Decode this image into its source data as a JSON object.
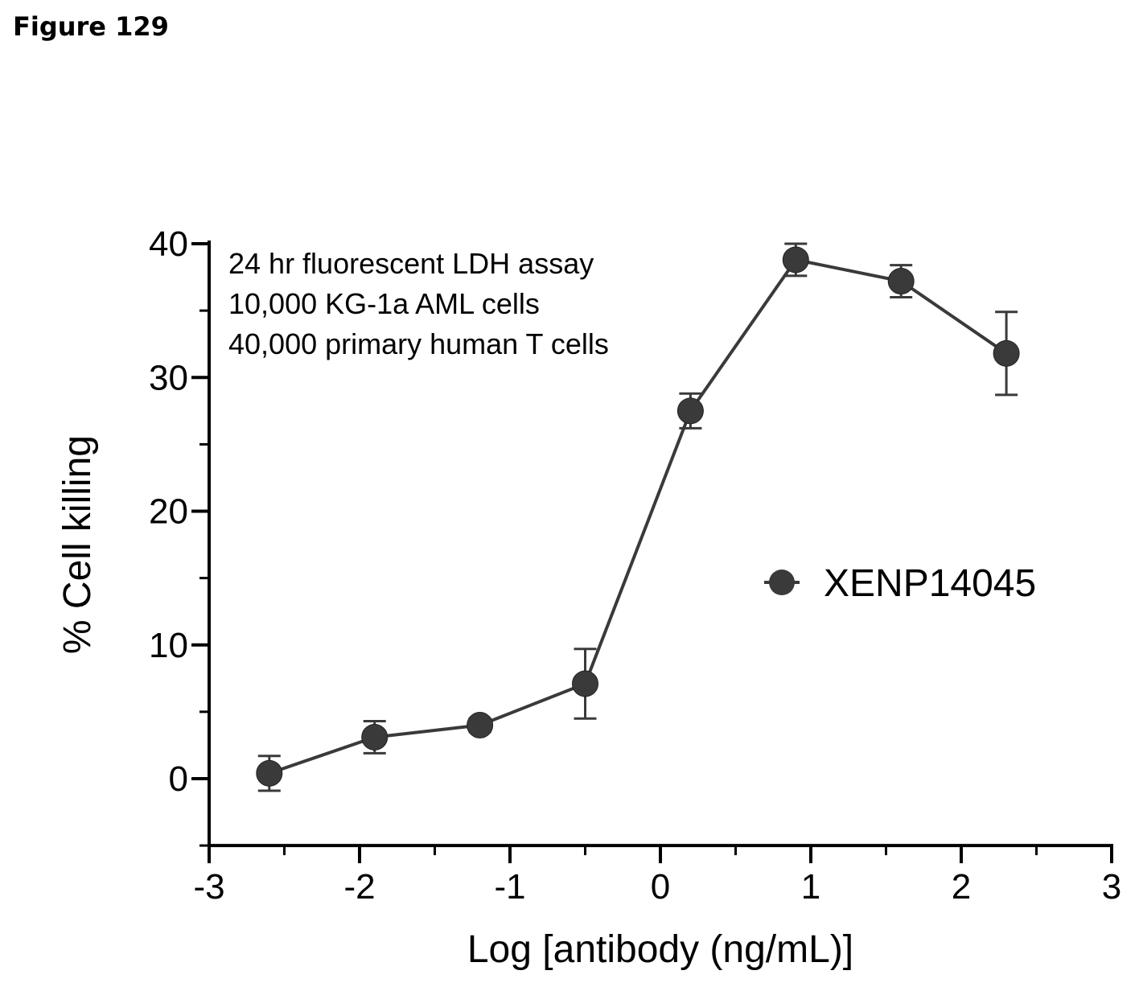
{
  "figure_label": "Figure 129",
  "chart_data": {
    "type": "line",
    "title": "",
    "xlabel": "Log [antibody (ng/mL)]",
    "ylabel": "% Cell killing",
    "xlim": [
      -3,
      3
    ],
    "ylim": [
      -5,
      40
    ],
    "x_ticks": [
      -3,
      -2,
      -1,
      0,
      1,
      2,
      3
    ],
    "x_tick_labels": [
      "-3",
      "-2",
      "-1",
      "0",
      "1",
      "2",
      "3"
    ],
    "y_ticks": [
      0,
      10,
      20,
      30,
      40
    ],
    "y_tick_labels": [
      "0",
      "10",
      "20",
      "30",
      "40"
    ],
    "grid": false,
    "legend_position": "right",
    "annotations": [
      "24 hr fluorescent LDH assay",
      "10,000 KG-1a AML cells",
      "40,000 primary human T cells"
    ],
    "series": [
      {
        "name": "XENP14045",
        "color": "#3a3a3a",
        "x": [
          -2.6,
          -1.9,
          -1.2,
          -0.5,
          0.2,
          0.9,
          1.6,
          2.3
        ],
        "y": [
          0.4,
          3.1,
          4.0,
          7.1,
          27.5,
          38.8,
          37.2,
          31.8
        ],
        "error": [
          1.3,
          1.2,
          0.5,
          2.6,
          1.3,
          1.2,
          1.2,
          3.1
        ]
      }
    ]
  }
}
